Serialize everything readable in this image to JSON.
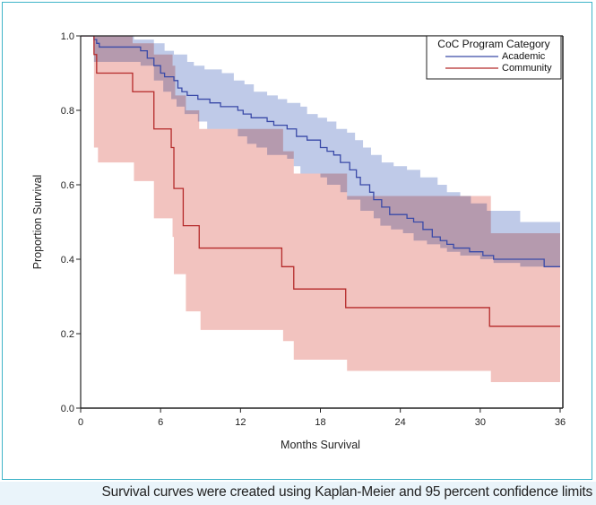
{
  "caption": "Survival curves were created using Kaplan-Meier and 95 percent confidence limits",
  "chart_data": {
    "type": "line",
    "subtype": "kaplan-meier step",
    "title": "",
    "xlabel": "Months Survival",
    "ylabel": "Proportion Survival",
    "xlim": [
      0,
      36
    ],
    "ylim": [
      0,
      1.0
    ],
    "x_ticks": [
      0,
      6,
      12,
      18,
      24,
      30,
      36
    ],
    "x_tick_labels": [
      "0",
      "6",
      "12",
      "18",
      "24",
      "30",
      "36"
    ],
    "y_ticks": [
      0.0,
      0.2,
      0.4,
      0.6,
      0.8,
      1.0
    ],
    "y_tick_labels": [
      "0.0",
      "0.2",
      "0.4",
      "0.6",
      "0.8",
      "1.0"
    ],
    "grid": false,
    "legend": {
      "title": "CoC Program Category",
      "placement": "top-right",
      "entries": [
        "Academic",
        "Community"
      ]
    },
    "series": [
      {
        "name": "Academic",
        "color": "#3a4aa8",
        "band_color": "#a9b8e0",
        "steps": [
          [
            0,
            1.0
          ],
          [
            1.0,
            0.99
          ],
          [
            1.2,
            0.98
          ],
          [
            1.4,
            0.97
          ],
          [
            4.5,
            0.96
          ],
          [
            5.0,
            0.94
          ],
          [
            5.5,
            0.92
          ],
          [
            6.0,
            0.9
          ],
          [
            6.3,
            0.89
          ],
          [
            7.0,
            0.88
          ],
          [
            7.3,
            0.86
          ],
          [
            7.6,
            0.85
          ],
          [
            8.0,
            0.84
          ],
          [
            8.8,
            0.83
          ],
          [
            9.7,
            0.82
          ],
          [
            10.5,
            0.81
          ],
          [
            11.8,
            0.8
          ],
          [
            12.2,
            0.79
          ],
          [
            12.8,
            0.78
          ],
          [
            14.0,
            0.77
          ],
          [
            14.5,
            0.76
          ],
          [
            15.5,
            0.75
          ],
          [
            16.2,
            0.73
          ],
          [
            17.0,
            0.72
          ],
          [
            18.0,
            0.7
          ],
          [
            18.5,
            0.69
          ],
          [
            19.0,
            0.68
          ],
          [
            19.5,
            0.66
          ],
          [
            20.2,
            0.64
          ],
          [
            20.7,
            0.62
          ],
          [
            21.0,
            0.6
          ],
          [
            21.7,
            0.58
          ],
          [
            22.0,
            0.56
          ],
          [
            22.6,
            0.54
          ],
          [
            23.2,
            0.52
          ],
          [
            24.5,
            0.51
          ],
          [
            25.0,
            0.5
          ],
          [
            25.7,
            0.48
          ],
          [
            26.4,
            0.46
          ],
          [
            27.0,
            0.45
          ],
          [
            27.5,
            0.44
          ],
          [
            28.0,
            0.43
          ],
          [
            29.2,
            0.42
          ],
          [
            30.2,
            0.41
          ],
          [
            31.0,
            0.4
          ],
          [
            34.8,
            0.38
          ],
          [
            36.0,
            0.38
          ]
        ],
        "lower": [
          [
            0,
            1.0
          ],
          [
            1.0,
            0.93
          ],
          [
            1.3,
            0.96
          ],
          [
            4.0,
            0.94
          ],
          [
            5.0,
            0.91
          ],
          [
            5.5,
            0.88
          ],
          [
            6.2,
            0.86
          ],
          [
            7.0,
            0.83
          ],
          [
            8.2,
            0.81
          ],
          [
            9.5,
            0.79
          ],
          [
            10.5,
            0.77
          ],
          [
            11.5,
            0.74
          ],
          [
            12.0,
            0.73
          ],
          [
            13.0,
            0.71
          ],
          [
            14.3,
            0.7
          ],
          [
            14.8,
            0.67
          ],
          [
            15.5,
            0.65
          ],
          [
            16.2,
            0.63
          ],
          [
            17.0,
            0.61
          ],
          [
            18.3,
            0.59
          ],
          [
            19.0,
            0.56
          ],
          [
            20.0,
            0.54
          ],
          [
            21.0,
            0.52
          ],
          [
            21.5,
            0.5
          ],
          [
            22.2,
            0.48
          ],
          [
            23.0,
            0.47
          ],
          [
            24.0,
            0.46
          ],
          [
            25.0,
            0.45
          ],
          [
            36.0,
            0.45
          ]
        ],
        "upper": [
          [
            0,
            1.0
          ],
          [
            1.0,
            1.0
          ],
          [
            4.0,
            0.99
          ],
          [
            5.5,
            0.98
          ],
          [
            6.3,
            0.96
          ],
          [
            7.0,
            0.95
          ],
          [
            8.0,
            0.93
          ],
          [
            8.5,
            0.92
          ],
          [
            9.3,
            0.91
          ],
          [
            10.6,
            0.9
          ],
          [
            11.5,
            0.88
          ],
          [
            12.3,
            0.87
          ],
          [
            13.0,
            0.85
          ],
          [
            14.0,
            0.84
          ],
          [
            14.8,
            0.83
          ],
          [
            15.5,
            0.82
          ],
          [
            16.5,
            0.81
          ],
          [
            17.0,
            0.79
          ],
          [
            17.8,
            0.78
          ],
          [
            18.5,
            0.77
          ],
          [
            19.2,
            0.75
          ],
          [
            20.0,
            0.74
          ],
          [
            20.6,
            0.72
          ],
          [
            21.2,
            0.7
          ],
          [
            21.8,
            0.68
          ],
          [
            22.6,
            0.66
          ],
          [
            23.5,
            0.65
          ],
          [
            24.5,
            0.64
          ],
          [
            25.5,
            0.62
          ],
          [
            26.8,
            0.6
          ],
          [
            27.5,
            0.58
          ],
          [
            28.5,
            0.57
          ],
          [
            29.3,
            0.55
          ],
          [
            30.5,
            0.53
          ],
          [
            33.0,
            0.5
          ],
          [
            36.0,
            0.5
          ]
        ],
        "lower_band": [
          [
            0,
            1.0
          ],
          [
            1.0,
            0.93
          ],
          [
            2.0,
            0.93
          ],
          [
            4.5,
            0.92
          ],
          [
            5.5,
            0.88
          ],
          [
            6.2,
            0.85
          ],
          [
            6.8,
            0.83
          ],
          [
            7.2,
            0.81
          ],
          [
            7.8,
            0.79
          ],
          [
            8.8,
            0.77
          ],
          [
            9.5,
            0.75
          ],
          [
            11.8,
            0.73
          ],
          [
            12.5,
            0.71
          ],
          [
            13.2,
            0.7
          ],
          [
            14.0,
            0.68
          ],
          [
            15.5,
            0.67
          ],
          [
            16.0,
            0.65
          ],
          [
            16.5,
            0.63
          ],
          [
            18.0,
            0.62
          ],
          [
            18.5,
            0.6
          ],
          [
            19.5,
            0.58
          ],
          [
            20.0,
            0.56
          ],
          [
            21.0,
            0.53
          ],
          [
            22.0,
            0.51
          ],
          [
            22.5,
            0.49
          ],
          [
            23.3,
            0.48
          ],
          [
            24.2,
            0.47
          ],
          [
            25.0,
            0.45
          ],
          [
            26.0,
            0.44
          ],
          [
            27.0,
            0.43
          ],
          [
            27.5,
            0.42
          ],
          [
            28.5,
            0.41
          ],
          [
            30.0,
            0.4
          ],
          [
            31.0,
            0.39
          ],
          [
            33.0,
            0.38
          ],
          [
            36.0,
            0.38
          ]
        ]
      },
      {
        "name": "Community",
        "color": "#b52a2a",
        "band_color": "#eca9a4",
        "steps": [
          [
            0,
            1.0
          ],
          [
            1.0,
            0.95
          ],
          [
            1.2,
            0.9
          ],
          [
            3.9,
            0.85
          ],
          [
            5.5,
            0.75
          ],
          [
            6.8,
            0.7
          ],
          [
            7.0,
            0.59
          ],
          [
            7.7,
            0.49
          ],
          [
            8.9,
            0.43
          ],
          [
            15.1,
            0.38
          ],
          [
            16.0,
            0.32
          ],
          [
            19.9,
            0.27
          ],
          [
            30.7,
            0.22
          ],
          [
            36.0,
            0.22
          ]
        ],
        "lower": [
          [
            0,
            1.0
          ],
          [
            1.0,
            0.7
          ],
          [
            1.3,
            0.66
          ],
          [
            4.0,
            0.61
          ],
          [
            5.5,
            0.51
          ],
          [
            6.9,
            0.46
          ],
          [
            7.0,
            0.36
          ],
          [
            7.9,
            0.26
          ],
          [
            9.0,
            0.21
          ],
          [
            15.2,
            0.18
          ],
          [
            16.0,
            0.13
          ],
          [
            20.0,
            0.1
          ],
          [
            30.8,
            0.07
          ],
          [
            36.0,
            0.07
          ]
        ],
        "upper": [
          [
            0,
            1.0
          ],
          [
            1.0,
            1.0
          ],
          [
            3.9,
            0.98
          ],
          [
            5.5,
            0.95
          ],
          [
            6.9,
            0.92
          ],
          [
            7.1,
            0.84
          ],
          [
            7.9,
            0.8
          ],
          [
            8.9,
            0.75
          ],
          [
            15.2,
            0.69
          ],
          [
            16.0,
            0.63
          ],
          [
            20.0,
            0.57
          ],
          [
            30.8,
            0.47
          ],
          [
            36.0,
            0.43
          ]
        ]
      }
    ]
  }
}
